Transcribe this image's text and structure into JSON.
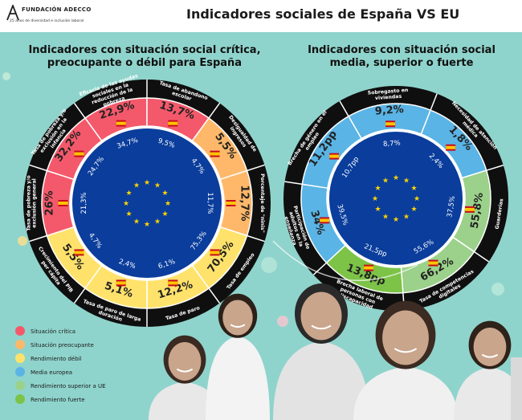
{
  "header": {
    "org_name": "FUNDACIÓN ADECCO",
    "org_tagline": "25 años de diversidad e inclusión laboral",
    "title": "Indicadores sociales de España VS EU"
  },
  "colors": {
    "background": "#8fd4cc",
    "critical": "#f4596b",
    "worrying": "#ffb86a",
    "weak": "#ffe26b",
    "eu_average": "#5ab4e5",
    "superior": "#9bd18a",
    "strong": "#7cc347",
    "eu_blue": "#0a3d9c",
    "ring_black": "#0f0f0f"
  },
  "chart_data": [
    {
      "type": "radial-comparison",
      "title": "Indicadores con situación social crítica, preocupante o débil para España",
      "indicators": [
        {
          "label": "Eficacia de las ayudas sociales en la reducción de la pobreza",
          "spain": "22,9%",
          "eu": "34,7%",
          "status": "critical"
        },
        {
          "label": "Tasa de abandono escolar",
          "spain": "13,7%",
          "eu": "9,5%",
          "status": "critical"
        },
        {
          "label": "Desigualdad de ingresos",
          "spain": "5,5%",
          "eu": "4,7%",
          "status": "worrying"
        },
        {
          "label": "Porcentaje de \"ninis\"",
          "spain": "12,7%",
          "eu": "11,7%",
          "status": "worrying"
        },
        {
          "label": "Tasa de empleo",
          "spain": "70,5%",
          "eu": "75,3%",
          "status": "weak"
        },
        {
          "label": "Tasa de paro",
          "spain": "12,2%",
          "eu": "6,1%",
          "status": "weak"
        },
        {
          "label": "Tasa de paro de larga duración",
          "spain": "5,1%",
          "eu": "2,4%",
          "status": "weak"
        },
        {
          "label": "Crecimiento del PIB per cápita",
          "spain": "5,5%",
          "eu": "4,7%",
          "status": "weak"
        },
        {
          "label": "Tasa de pobreza y/o exclusión general",
          "spain": "26%",
          "eu": "21,3%",
          "status": "critical"
        },
        {
          "label": "Tasa de pobreza y/o exclusión en la infancia",
          "spain": "32,2%",
          "eu": "24,7%",
          "status": "critical"
        }
      ]
    },
    {
      "type": "radial-comparison",
      "title": "Indicadores con situación social media, superior o fuerte",
      "indicators": [
        {
          "label": "Sobregasto en viviendas",
          "spain": "9,2%",
          "eu": "8,7%",
          "status": "eu_average"
        },
        {
          "label": "Necesidad de atención médica",
          "spain": "1,8%",
          "eu": "2,4%",
          "status": "eu_average"
        },
        {
          "label": "Guarderías",
          "spain": "55,8%",
          "eu": "37,5%",
          "status": "superior"
        },
        {
          "label": "Tasa de competencias digitales",
          "spain": "66,2%",
          "eu": "55,6%",
          "status": "superior"
        },
        {
          "label": "Brecha laboral de personas con discapacidad",
          "spain": "13,8pp",
          "eu": "21,5pp",
          "status": "strong"
        },
        {
          "label": "Participación de adultos en la enseñanza",
          "spain": "34%",
          "eu": "39,5%",
          "status": "eu_average"
        },
        {
          "label": "Brecha de género en el empleo",
          "spain": "11,2pp",
          "eu": "10,7pp",
          "status": "eu_average"
        }
      ]
    }
  ],
  "legend": [
    {
      "label": "Situación crítica",
      "key": "critical"
    },
    {
      "label": "Situación preocupante",
      "key": "worrying"
    },
    {
      "label": "Rendimiento débil",
      "key": "weak"
    },
    {
      "label": "Media europea",
      "key": "eu_average"
    },
    {
      "label": "Rendimiento superior a UE",
      "key": "superior"
    },
    {
      "label": "Rendimiento fuerte",
      "key": "strong"
    }
  ]
}
